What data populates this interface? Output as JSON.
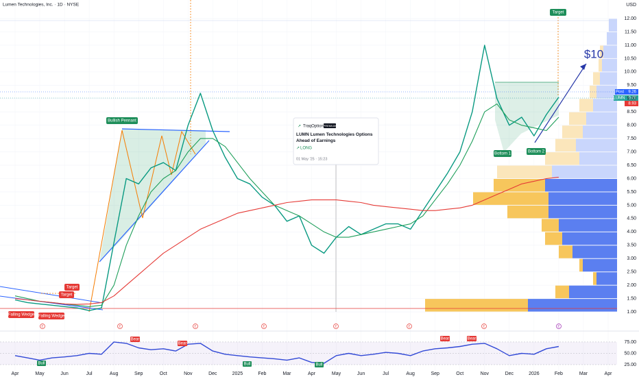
{
  "chart_data": [
    {
      "type": "line",
      "title": "Lumen Technologies, Inc. · 1D · NYSE",
      "currency": "USD",
      "categories": [
        "Apr",
        null,
        "May",
        null,
        "Jun",
        null,
        "Jul",
        null,
        "Aug",
        null,
        "Sep",
        null,
        "Oct",
        null,
        "Nov",
        null,
        "Dec",
        null,
        "2025",
        null,
        "Feb",
        null,
        "Mar",
        null,
        "Apr",
        null,
        "May",
        null,
        "Jun",
        null,
        "Jul",
        null,
        "Aug",
        null,
        "Sep",
        null,
        "Oct",
        null,
        "Nov",
        null,
        "Dec",
        null,
        "2026",
        null,
        "Feb",
        null,
        "Mar",
        null,
        "Apr"
      ],
      "series": [
        {
          "color": "#089981",
          "values": [
            1.45,
            1.35,
            1.3,
            1.25,
            1.2,
            1.15,
            1.05,
            1.15,
            3.6,
            6.0,
            5.8,
            6.4,
            6.6,
            6.3,
            8.0,
            9.2,
            7.8,
            6.8,
            6.0,
            5.8,
            5.3,
            5.0,
            4.4,
            4.6,
            3.5,
            3.2,
            3.8,
            4.2,
            3.9,
            4.1,
            4.3,
            4.3,
            4.1,
            4.8,
            5.5,
            6.2,
            7.0,
            8.5,
            11.0,
            9.0,
            8.0,
            8.3,
            7.6,
            8.4,
            9.05,
            null,
            null,
            null,
            null
          ]
        },
        {
          "color": "#1e9e5a",
          "values": [
            1.6,
            1.5,
            1.4,
            1.35,
            1.3,
            1.25,
            1.2,
            1.25,
            2.0,
            3.5,
            4.6,
            5.5,
            6.0,
            6.3,
            7.0,
            7.5,
            7.5,
            7.2,
            6.6,
            6.0,
            5.5,
            5.0,
            4.8,
            4.6,
            4.3,
            4.0,
            3.8,
            3.8,
            3.9,
            4.0,
            4.1,
            4.2,
            4.3,
            4.6,
            5.2,
            5.8,
            6.5,
            7.4,
            8.5,
            8.8,
            8.2,
            8.0,
            7.9,
            7.8,
            8.3,
            null,
            null,
            null,
            null
          ]
        },
        {
          "color": "#e53935",
          "values": [
            1.5,
            1.45,
            1.4,
            1.35,
            1.3,
            1.28,
            1.3,
            1.35,
            1.6,
            2.0,
            2.4,
            2.8,
            3.2,
            3.5,
            3.8,
            4.1,
            4.3,
            4.5,
            4.7,
            4.8,
            4.9,
            5.0,
            5.1,
            5.15,
            5.2,
            5.2,
            5.2,
            5.15,
            5.1,
            5.0,
            4.95,
            4.9,
            4.85,
            4.8,
            4.8,
            4.85,
            4.9,
            5.0,
            5.2,
            5.4,
            5.6,
            5.8,
            5.9,
            6.0,
            6.05,
            null,
            null,
            null,
            null
          ]
        }
      ],
      "ylim": [
        0.6,
        12.5
      ],
      "yticks": [
        {
          "value": 1,
          "label": "1.00"
        },
        {
          "value": 1.5,
          "label": "1.50"
        },
        {
          "value": 2,
          "label": "2.00"
        },
        {
          "value": 2.5,
          "label": "2.50"
        },
        {
          "value": 3,
          "label": "3.00"
        },
        {
          "value": 3.5,
          "label": "3.50"
        },
        {
          "value": 4,
          "label": "4.00"
        },
        {
          "value": 4.5,
          "label": "4.50"
        },
        {
          "value": 5,
          "label": "5.00"
        },
        {
          "value": 5.5,
          "label": "5.50"
        },
        {
          "value": 6,
          "label": "6.00"
        },
        {
          "value": 6.5,
          "label": "6.50"
        },
        {
          "value": 7,
          "label": "7.00"
        },
        {
          "value": 7.5,
          "label": "7.50"
        },
        {
          "value": 8,
          "label": "8.00"
        },
        {
          "value": 8.5,
          "label": "8.50"
        },
        {
          "value": 9,
          "label": "9.00"
        },
        {
          "value": 9.5,
          "label": "9.50"
        },
        {
          "value": 10,
          "label": "10.00"
        },
        {
          "value": 10.5,
          "label": "10.50"
        },
        {
          "value": 11,
          "label": "11.00"
        },
        {
          "value": 11.5,
          "label": "11.50"
        },
        {
          "value": 12,
          "label": "12.00"
        }
      ],
      "grid": true,
      "volume_profile": {
        "price_levels": [
          1.0,
          1.5,
          2.0,
          2.5,
          3.0,
          3.5,
          4.0,
          4.5,
          5.0,
          5.5,
          6.0,
          6.5,
          7.0,
          7.5,
          8.0,
          8.5,
          9.0,
          9.5,
          10.0,
          10.5,
          11.0,
          11.5
        ],
        "blue": [
          130,
          70,
          30,
          50,
          65,
          80,
          85,
          100,
          100,
          105,
          95,
          55,
          60,
          50,
          45,
          35,
          30,
          25,
          22,
          20,
          15,
          12
        ],
        "yellow": [
          150,
          20,
          5,
          5,
          20,
          25,
          25,
          60,
          110,
          75,
          80,
          50,
          30,
          30,
          25,
          20,
          10,
          10,
          5,
          5,
          0,
          0
        ],
        "value_area": [
          1.0,
          6.0
        ]
      },
      "price_labels": [
        9.26,
        9.05,
        8.93
      ],
      "price_tags": [
        "Post",
        "LUMN"
      ],
      "annotations": {
        "pennant": "Bullish Pennant",
        "targets": [
          "Target",
          "Target",
          "Target"
        ],
        "wedges": [
          "Falling Wedge",
          "Falling Wedge"
        ],
        "bottoms": [
          "Bottom 1",
          "Bottom 2"
        ],
        "price_target": "$10",
        "events": [
          "E",
          "E",
          "E",
          "E",
          "E",
          "E",
          "E",
          "E"
        ]
      },
      "idea": {
        "author": "TraqOptions",
        "badge": "PREMIUM",
        "title": "LUMN Lumen Technologies Options Ahead of Earnings",
        "direction": "LONG",
        "date": "01 May '25 · 15:23"
      }
    },
    {
      "type": "line",
      "series": [
        {
          "color": "#3048d6",
          "values": [
            45,
            40,
            35,
            40,
            42,
            45,
            50,
            48,
            75,
            72,
            62,
            58,
            60,
            55,
            70,
            72,
            55,
            48,
            45,
            42,
            40,
            38,
            35,
            40,
            30,
            28,
            45,
            50,
            45,
            48,
            52,
            50,
            45,
            55,
            60,
            62,
            65,
            70,
            72,
            60,
            45,
            50,
            48,
            60,
            65,
            null,
            null,
            null,
            null
          ]
        }
      ],
      "ylim": [
        10,
        90
      ],
      "yticks": [
        {
          "value": 75,
          "label": "75.00"
        },
        {
          "value": 50,
          "label": "50.00"
        },
        {
          "value": 25,
          "label": "25.00"
        }
      ],
      "signals": [
        "Bull",
        "Bear",
        "Bear",
        "Bull",
        "Bull",
        "Bear",
        "Bear"
      ]
    }
  ]
}
